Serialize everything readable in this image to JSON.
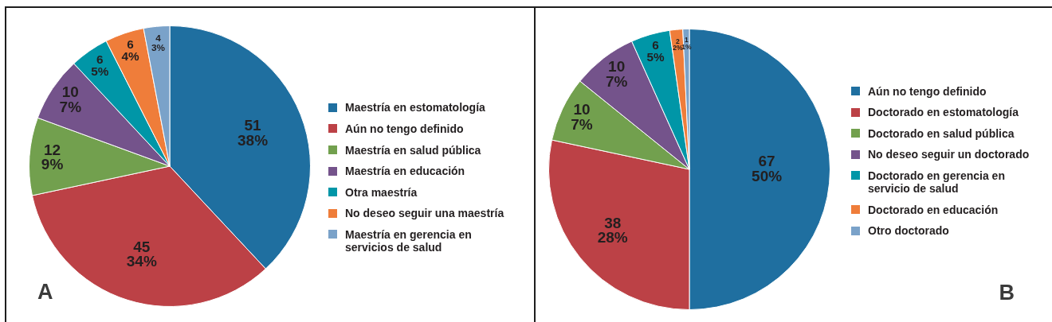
{
  "chart_data": [
    {
      "type": "pie",
      "categories": [
        "Maestría en estomatología",
        "Aún no tengo definido",
        "Maestría en salud pública",
        "Maestría en educación",
        "Otra maestría",
        "No deseo seguir una maestría",
        "Maestría en gerencia en servicios de salud"
      ],
      "values": [
        51,
        45,
        12,
        10,
        6,
        6,
        4
      ],
      "colors": [
        "#1f6fa0",
        "#bc4146",
        "#72a04e",
        "#74538b",
        "#0096a7",
        "#ef7d3a",
        "#7aa2c9"
      ],
      "value_labels": [
        "51\n38%",
        "45\n34%",
        "12\n9%",
        "10\n7%",
        "6\n5%",
        "6\n4%",
        "4\n3%"
      ],
      "legend": "right",
      "annotations": [
        "A"
      ]
    },
    {
      "type": "pie",
      "categories": [
        "Aún no tengo definido",
        "Doctorado en estomatología",
        "Doctorado en salud pública",
        "No deseo seguir un doctorado",
        "Doctorado en gerencia en servicio de salud",
        "Doctorado en educación",
        "Otro doctorado"
      ],
      "values": [
        67,
        38,
        10,
        10,
        6,
        2,
        1
      ],
      "colors": [
        "#1f6fa0",
        "#bc4146",
        "#72a04e",
        "#74538b",
        "#0096a7",
        "#ef7d3a",
        "#7aa2c9"
      ],
      "value_labels": [
        "67\n50%",
        "38\n28%",
        "10\n7%",
        "10\n7%",
        "6\n5%",
        "2\n2%",
        "1\n1%"
      ],
      "legend": "right",
      "annotations": [
        "B"
      ]
    }
  ]
}
